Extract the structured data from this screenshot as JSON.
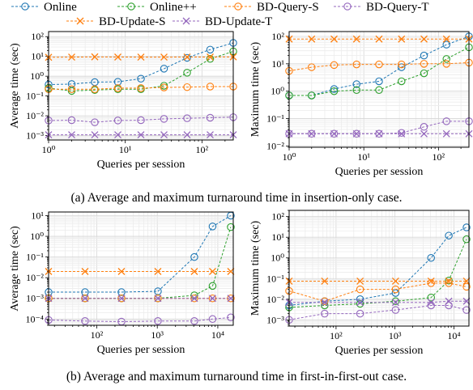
{
  "legend": [
    {
      "name": "Online",
      "color": "#1f77b4",
      "marker": "circle"
    },
    {
      "name": "Online++",
      "color": "#2ca02c",
      "marker": "circle"
    },
    {
      "name": "BD-Query-S",
      "color": "#ff7f0e",
      "marker": "circle"
    },
    {
      "name": "BD-Query-T",
      "color": "#9467bd",
      "marker": "circle"
    },
    {
      "name": "BD-Update-S",
      "color": "#ff7f0e",
      "marker": "x"
    },
    {
      "name": "BD-Update-T",
      "color": "#9467bd",
      "marker": "x"
    }
  ],
  "captions": [
    "(a) Average and maximum turnaround time in insertion-only case.",
    "(b) Average and maximum turnaround time in first-in-first-out case."
  ],
  "chart_data": [
    {
      "id": "a-avg",
      "type": "line",
      "xscale": "log",
      "yscale": "log",
      "xlabel": "Queries per session",
      "ylabel": "Average time (sec)",
      "xlim": [
        1,
        256
      ],
      "ylim": [
        0.0006,
        180
      ],
      "xticks": [
        {
          "v": 1,
          "label": "10⁰"
        },
        {
          "v": 10,
          "label": "10¹"
        },
        {
          "v": 100,
          "label": "10²"
        }
      ],
      "yticks": [
        {
          "v": 0.001,
          "label": "10⁻³"
        },
        {
          "v": 0.01,
          "label": "10⁻²"
        },
        {
          "v": 0.1,
          "label": "10⁻¹"
        },
        {
          "v": 1,
          "label": "10⁰"
        },
        {
          "v": 10,
          "label": "10¹"
        },
        {
          "v": 100,
          "label": "10²"
        }
      ],
      "x": [
        1,
        2,
        4,
        8,
        16,
        32,
        64,
        128,
        256
      ],
      "series": [
        {
          "name": "Online",
          "values": [
            0.38,
            0.4,
            0.5,
            0.52,
            0.75,
            2.4,
            8.5,
            22,
            48
          ]
        },
        {
          "name": "Online++",
          "values": [
            0.25,
            0.18,
            0.2,
            0.22,
            0.22,
            0.33,
            1.5,
            7.5,
            18
          ]
        },
        {
          "name": "BD-Query-S",
          "values": [
            0.22,
            0.22,
            0.22,
            0.25,
            0.25,
            0.27,
            0.28,
            0.3,
            0.3
          ]
        },
        {
          "name": "BD-Query-T",
          "values": [
            0.0058,
            0.006,
            0.0047,
            0.0058,
            0.006,
            0.007,
            0.0075,
            0.008,
            0.0085
          ]
        },
        {
          "name": "BD-Update-S",
          "values": [
            9,
            9.2,
            9.5,
            9.3,
            9.2,
            9.2,
            9.3,
            9.3,
            9.5
          ]
        },
        {
          "name": "BD-Update-T",
          "values": [
            0.0011,
            0.0011,
            0.0011,
            0.0011,
            0.0011,
            0.0011,
            0.0011,
            0.0011,
            0.0011
          ]
        }
      ]
    },
    {
      "id": "a-max",
      "type": "line",
      "xscale": "log",
      "yscale": "log",
      "xlabel": "Queries per session",
      "ylabel": "Maximum time (sec)",
      "xlim": [
        1,
        256
      ],
      "ylim": [
        0.009,
        150
      ],
      "xticks": [
        {
          "v": 1,
          "label": "10⁰"
        },
        {
          "v": 10,
          "label": "10¹"
        },
        {
          "v": 100,
          "label": "10²"
        }
      ],
      "yticks": [
        {
          "v": 0.01,
          "label": "10⁻²"
        },
        {
          "v": 0.1,
          "label": "10⁻¹"
        },
        {
          "v": 1,
          "label": "10⁰"
        },
        {
          "v": 10,
          "label": "10¹"
        },
        {
          "v": 100,
          "label": "10²"
        }
      ],
      "x": [
        1,
        2,
        4,
        8,
        16,
        32,
        64,
        128,
        256
      ],
      "series": [
        {
          "name": "Online",
          "values": [
            0.7,
            0.7,
            1.2,
            1.8,
            2.3,
            7.5,
            20,
            50,
            100
          ]
        },
        {
          "name": "Online++",
          "values": [
            0.7,
            0.7,
            1.0,
            1.1,
            1.1,
            2.3,
            4.5,
            15,
            40
          ]
        },
        {
          "name": "BD-Query-S",
          "values": [
            5.5,
            7.5,
            9,
            9.5,
            9.5,
            9.5,
            10,
            10,
            11
          ]
        },
        {
          "name": "BD-Query-T",
          "values": [
            0.028,
            0.028,
            0.028,
            0.028,
            0.028,
            0.03,
            0.05,
            0.08,
            0.08
          ]
        },
        {
          "name": "BD-Update-S",
          "values": [
            80,
            80,
            80,
            80,
            80,
            80,
            80,
            80,
            80
          ]
        },
        {
          "name": "BD-Update-T",
          "values": [
            0.028,
            0.028,
            0.028,
            0.028,
            0.028,
            0.028,
            0.028,
            0.028,
            0.028
          ]
        }
      ]
    },
    {
      "id": "b-avg",
      "type": "line",
      "xscale": "log",
      "yscale": "log",
      "xlabel": "Queries per session",
      "ylabel": "Average time (sec)",
      "xlim": [
        16,
        18000
      ],
      "ylim": [
        5e-05,
        15
      ],
      "xticks": [
        {
          "v": 100,
          "label": "10²"
        },
        {
          "v": 1000,
          "label": "10³"
        },
        {
          "v": 10000,
          "label": "10⁴"
        }
      ],
      "yticks": [
        {
          "v": 0.0001,
          "label": "10⁻⁴"
        },
        {
          "v": 0.001,
          "label": "10⁻³"
        },
        {
          "v": 0.01,
          "label": "10⁻²"
        },
        {
          "v": 0.1,
          "label": "10⁻¹"
        },
        {
          "v": 1,
          "label": "10⁰"
        },
        {
          "v": 10,
          "label": "10¹"
        }
      ],
      "x": [
        16,
        64,
        256,
        1024,
        4096,
        8192,
        16384
      ],
      "series": [
        {
          "name": "Online",
          "values": [
            0.002,
            0.002,
            0.002,
            0.0022,
            0.1,
            3,
            10
          ]
        },
        {
          "name": "Online++",
          "values": [
            0.001,
            0.001,
            0.001,
            0.001,
            0.0014,
            0.004,
            2.8
          ]
        },
        {
          "name": "BD-Query-S",
          "values": [
            0.001,
            0.001,
            0.001,
            0.001,
            0.001,
            0.001,
            0.001
          ]
        },
        {
          "name": "BD-Query-T",
          "values": [
            9e-05,
            8e-05,
            7.5e-05,
            8e-05,
            8e-05,
            0.0001,
            0.00012
          ]
        },
        {
          "name": "BD-Update-S",
          "values": [
            0.02,
            0.02,
            0.02,
            0.02,
            0.02,
            0.02,
            0.02
          ]
        },
        {
          "name": "BD-Update-T",
          "values": [
            0.001,
            0.001,
            0.001,
            0.001,
            0.001,
            0.001,
            0.001
          ]
        }
      ]
    },
    {
      "id": "b-max",
      "type": "line",
      "xscale": "log",
      "yscale": "log",
      "xlabel": "Queries per session",
      "ylabel": "Maximum time (sec)",
      "xlim": [
        16,
        18000
      ],
      "ylim": [
        0.0005,
        200
      ],
      "xticks": [
        {
          "v": 100,
          "label": "10²"
        },
        {
          "v": 1000,
          "label": "10³"
        },
        {
          "v": 10000,
          "label": "10⁴"
        }
      ],
      "yticks": [
        {
          "v": 0.001,
          "label": "10⁻³"
        },
        {
          "v": 0.01,
          "label": "10⁻²"
        },
        {
          "v": 0.1,
          "label": "10⁻¹"
        },
        {
          "v": 1,
          "label": "10⁰"
        },
        {
          "v": 10,
          "label": "10¹"
        },
        {
          "v": 100,
          "label": "10²"
        }
      ],
      "x": [
        16,
        64,
        256,
        1024,
        4096,
        8192,
        16384
      ],
      "series": [
        {
          "name": "Online",
          "values": [
            0.005,
            0.008,
            0.01,
            0.02,
            1.0,
            12,
            30
          ]
        },
        {
          "name": "Online++",
          "values": [
            0.004,
            0.005,
            0.006,
            0.008,
            0.012,
            0.08,
            8
          ]
        },
        {
          "name": "BD-Query-S",
          "values": [
            0.025,
            0.008,
            0.03,
            0.03,
            0.06,
            0.06,
            0.04
          ]
        },
        {
          "name": "BD-Query-T",
          "values": [
            0.001,
            0.002,
            0.002,
            0.003,
            0.005,
            0.005,
            0.003
          ]
        },
        {
          "name": "BD-Update-S",
          "values": [
            0.075,
            0.075,
            0.075,
            0.075,
            0.075,
            0.075,
            0.075
          ]
        },
        {
          "name": "BD-Update-T",
          "values": [
            0.007,
            0.007,
            0.007,
            0.007,
            0.007,
            0.008,
            0.008
          ]
        }
      ]
    }
  ]
}
